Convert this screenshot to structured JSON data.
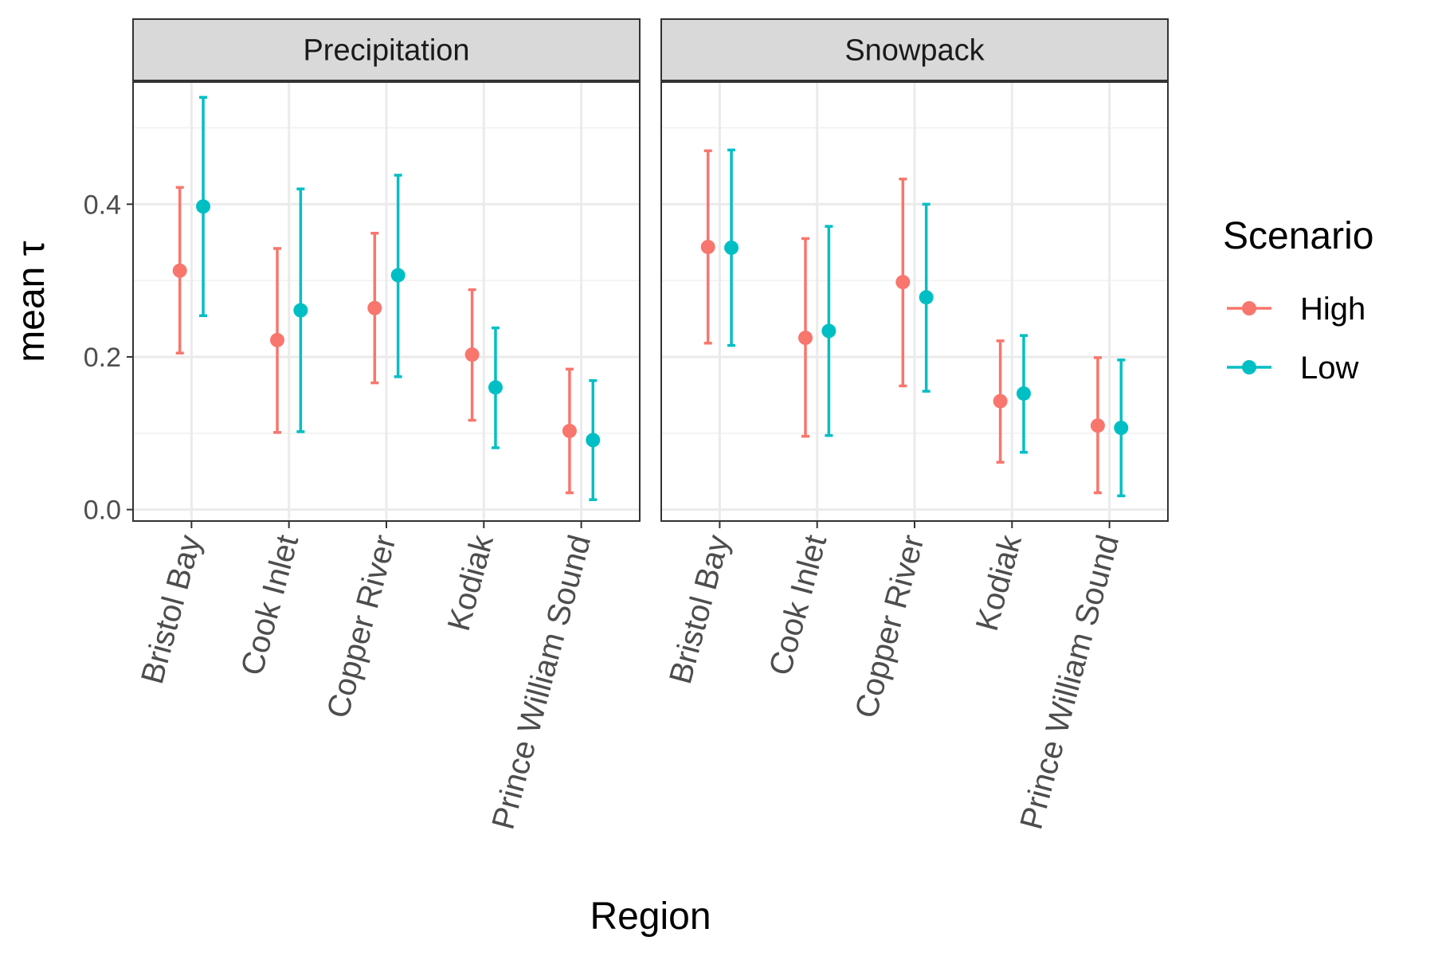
{
  "chart_data": {
    "type": "errorbar",
    "facets": [
      "Precipitation",
      "Snowpack"
    ],
    "categories": [
      "Bristol Bay",
      "Cook Inlet",
      "Copper River",
      "Kodiak",
      "Prince William Sound"
    ],
    "xlabel": "Region",
    "ylabel": "mean τ",
    "ylim": [
      -0.015,
      0.56
    ],
    "yticks": [
      0.0,
      0.2,
      0.4
    ],
    "ytick_labels": [
      "0.0",
      "0.2",
      "0.4"
    ],
    "grid": true,
    "legend": {
      "title": "Scenario",
      "position": "right"
    },
    "series": [
      {
        "name": "High",
        "color": "#F8766D",
        "panels": {
          "Precipitation": {
            "mean": [
              0.313,
              0.222,
              0.264,
              0.203,
              0.103
            ],
            "lower": [
              0.205,
              0.101,
              0.166,
              0.117,
              0.022
            ],
            "upper": [
              0.422,
              0.342,
              0.362,
              0.288,
              0.184
            ]
          },
          "Snowpack": {
            "mean": [
              0.344,
              0.225,
              0.298,
              0.142,
              0.11
            ],
            "lower": [
              0.218,
              0.096,
              0.162,
              0.062,
              0.022
            ],
            "upper": [
              0.47,
              0.355,
              0.433,
              0.221,
              0.199
            ]
          }
        }
      },
      {
        "name": "Low",
        "color": "#00BFC4",
        "panels": {
          "Precipitation": {
            "mean": [
              0.397,
              0.261,
              0.307,
              0.16,
              0.091
            ],
            "lower": [
              0.254,
              0.102,
              0.174,
              0.081,
              0.013
            ],
            "upper": [
              0.54,
              0.42,
              0.438,
              0.238,
              0.169
            ]
          },
          "Snowpack": {
            "mean": [
              0.343,
              0.234,
              0.278,
              0.152,
              0.107
            ],
            "lower": [
              0.215,
              0.097,
              0.155,
              0.075,
              0.018
            ],
            "upper": [
              0.471,
              0.371,
              0.4,
              0.228,
              0.196
            ]
          }
        }
      }
    ]
  }
}
